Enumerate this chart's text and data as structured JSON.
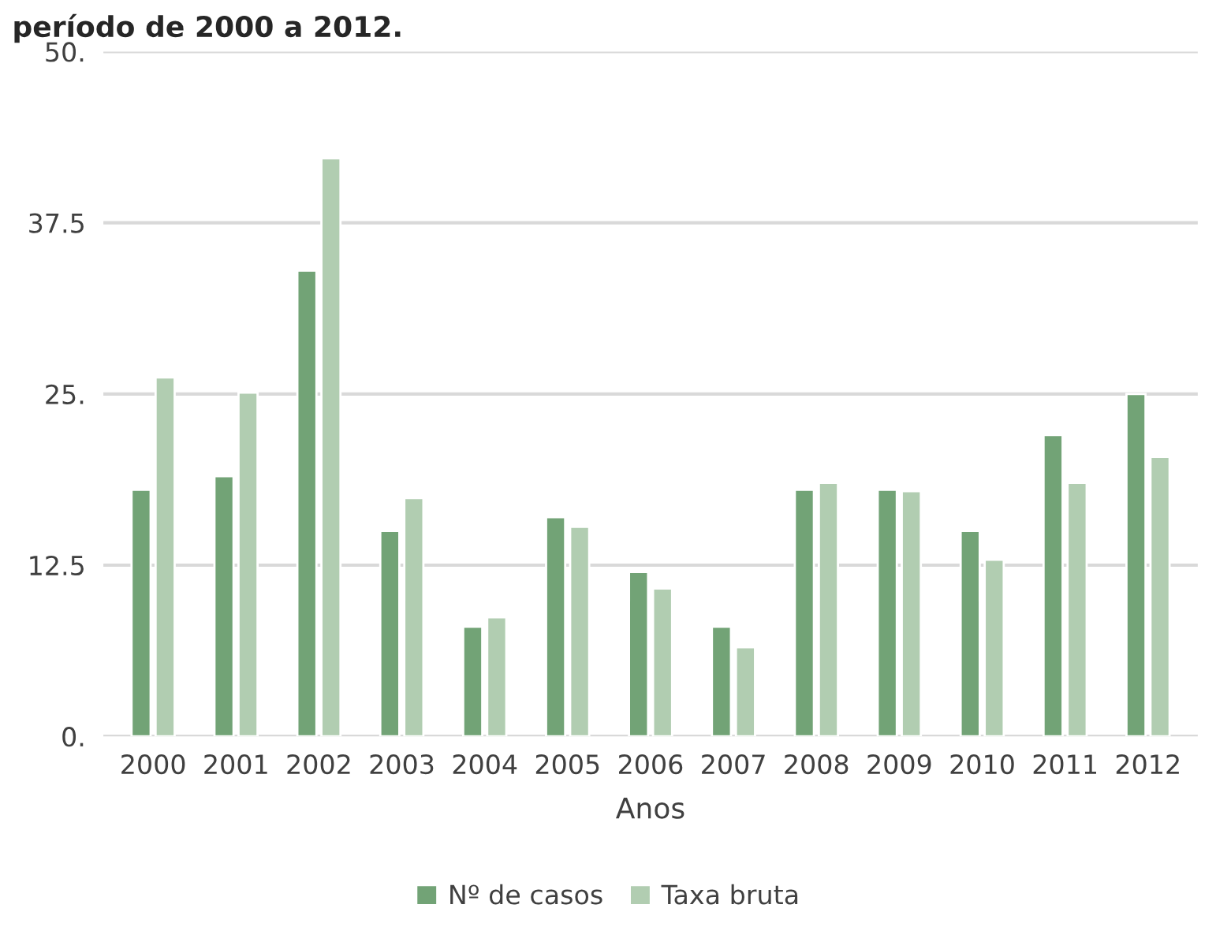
{
  "chart_data": {
    "type": "bar",
    "title": "período de 2000 a 2012.",
    "xlabel": "Anos",
    "categories": [
      "2000",
      "2001",
      "2002",
      "2003",
      "2004",
      "2005",
      "2006",
      "2007",
      "2008",
      "2009",
      "2010",
      "2011",
      "2012"
    ],
    "series": [
      {
        "name": "Nº de casos",
        "color": "#72a376",
        "values": [
          18,
          19,
          34,
          15,
          8,
          16,
          12,
          8,
          18,
          18,
          15,
          22,
          25
        ]
      },
      {
        "name": "Taxa bruta",
        "color": "#b1cdb1",
        "values": [
          26.2,
          25.1,
          42.2,
          17.4,
          8.7,
          15.3,
          10.8,
          6.5,
          18.5,
          17.9,
          12.9,
          18.5,
          20.4
        ]
      }
    ],
    "ylim": [
      0,
      50
    ],
    "yticks": [
      {
        "value": 0,
        "label": "0."
      },
      {
        "value": 12.5,
        "label": "12.5"
      },
      {
        "value": 25,
        "label": "25."
      },
      {
        "value": 37.5,
        "label": "37.5"
      },
      {
        "value": 50,
        "label": "50."
      }
    ],
    "grid": "y",
    "legend": "bottom"
  }
}
